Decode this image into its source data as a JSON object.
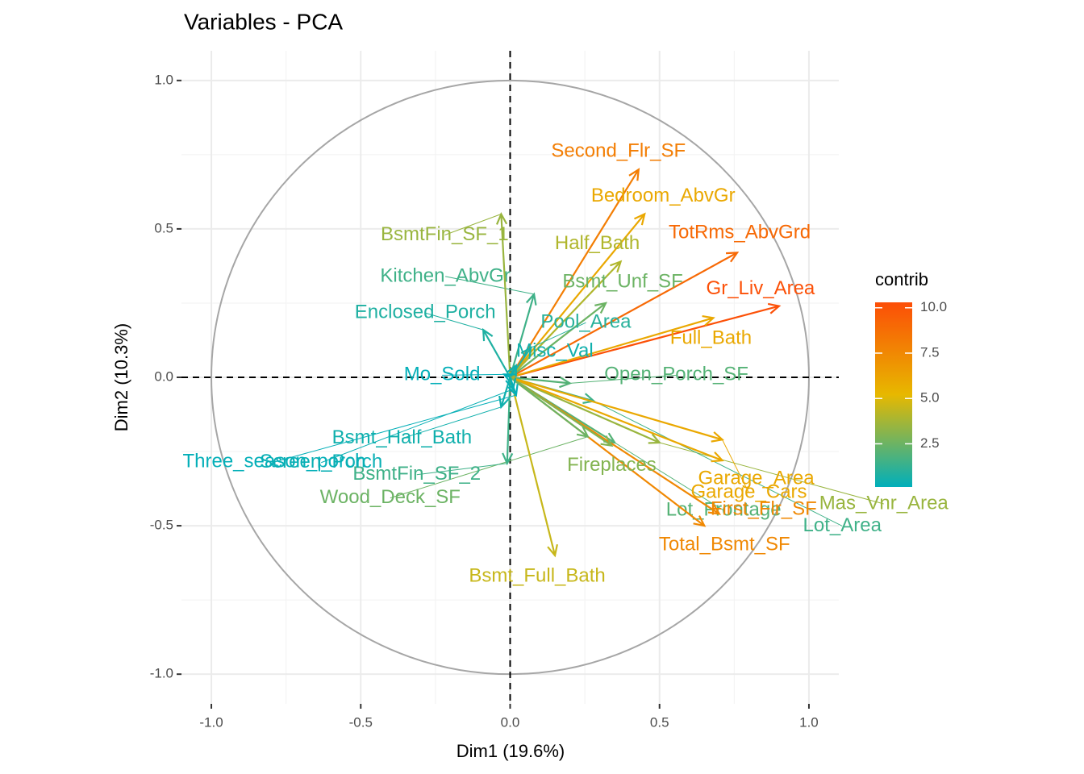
{
  "chart_data": {
    "type": "pca-variables",
    "title": "Variables - PCA",
    "x_label": "Dim1 (19.6%)",
    "y_label": "Dim2 (10.3%)",
    "xlim": [
      -1.1,
      1.1
    ],
    "ylim": [
      -1.1,
      1.1
    ],
    "xticks": [
      {
        "value": -1,
        "label": "-1.0"
      },
      -0.5,
      {
        "value": 0,
        "label": "0.0"
      },
      0.5,
      {
        "value": 1,
        "label": "1.0"
      }
    ],
    "yticks": [
      {
        "value": -1,
        "label": "-1.0"
      },
      -0.5,
      {
        "value": 0,
        "label": "0.0"
      },
      0.5,
      {
        "value": 1,
        "label": "1.0"
      }
    ],
    "grid": true,
    "legend": {
      "title": "contrib",
      "position": "right",
      "limits": [
        0.12,
        10.3
      ],
      "colors": [
        "#00AFBB",
        "#E7B800",
        "#FC4E07"
      ],
      "ticks": [
        2.5,
        {
          "value": 5,
          "label": "5.0"
        },
        7.5,
        {
          "value": 10,
          "label": "10.0"
        }
      ]
    },
    "variables": [
      {
        "name": "Second_Flr_SF",
        "x": 0.43,
        "y": 0.7,
        "contrib": 8.0
      },
      {
        "name": "Bedroom_AbvGr",
        "x": 0.45,
        "y": 0.55,
        "contrib": 6.0
      },
      {
        "name": "TotRms_AbvGrd",
        "x": 0.76,
        "y": 0.42,
        "contrib": 9.0
      },
      {
        "name": "Gr_Liv_Area",
        "x": 0.9,
        "y": 0.24,
        "contrib": 10.2
      },
      {
        "name": "Full_Bath",
        "x": 0.68,
        "y": 0.2,
        "contrib": 6.0
      },
      {
        "name": "Half_Bath",
        "x": 0.37,
        "y": 0.39,
        "contrib": 4.0
      },
      {
        "name": "Bsmt_Unf_SF",
        "x": 0.32,
        "y": 0.25,
        "contrib": 2.5
      },
      {
        "name": "Kitchen_AbvGr",
        "x": 0.08,
        "y": 0.28,
        "contrib": 1.5
      },
      {
        "name": "BsmtFin_SF_1",
        "x": -0.03,
        "y": 0.55,
        "contrib": 3.5
      },
      {
        "name": "Enclosed_Porch",
        "x": -0.09,
        "y": 0.16,
        "contrib": 0.8
      },
      {
        "name": "Pool_Area",
        "x": 0.07,
        "y": 0.1,
        "contrib": 1.0
      },
      {
        "name": "Misc_Val",
        "x": 0.02,
        "y": 0.04,
        "contrib": 0.5
      },
      {
        "name": "Mo_Sold",
        "x": -0.02,
        "y": 0.01,
        "contrib": 0.2
      },
      {
        "name": "Open_Porch_SF",
        "x": 0.2,
        "y": -0.02,
        "contrib": 2.0
      },
      {
        "name": "Mas_Vnr_Area",
        "x": 0.5,
        "y": -0.22,
        "contrib": 3.5
      },
      {
        "name": "Lot_Frontage",
        "x": 0.35,
        "y": -0.22,
        "contrib": 2.0
      },
      {
        "name": "Lot_Area",
        "x": 0.28,
        "y": -0.08,
        "contrib": 1.5
      },
      {
        "name": "Garage_Cars",
        "x": 0.71,
        "y": -0.21,
        "contrib": 6.0
      },
      {
        "name": "Garage_Area",
        "x": 0.71,
        "y": -0.28,
        "contrib": 6.0
      },
      {
        "name": "First_Flr_SF",
        "x": 0.7,
        "y": -0.46,
        "contrib": 7.5
      },
      {
        "name": "Total_Bsmt_SF",
        "x": 0.65,
        "y": -0.5,
        "contrib": 7.5
      },
      {
        "name": "Fireplaces",
        "x": 0.34,
        "y": -0.23,
        "contrib": 3.0
      },
      {
        "name": "Wood_Deck_SF",
        "x": 0.26,
        "y": -0.2,
        "contrib": 2.5
      },
      {
        "name": "Bsmt_Full_Bath",
        "x": 0.15,
        "y": -0.6,
        "contrib": 4.5
      },
      {
        "name": "BsmtFin_SF_2",
        "x": -0.01,
        "y": -0.29,
        "contrib": 1.5
      },
      {
        "name": "Bsmt_Half_Bath",
        "x": -0.03,
        "y": -0.1,
        "contrib": 0.5
      },
      {
        "name": "Three_season_porch",
        "x": 0.02,
        "y": -0.06,
        "contrib": 0.2
      },
      {
        "name": "Screen_Porch",
        "x": 0.01,
        "y": -0.04,
        "contrib": 0.3
      }
    ]
  }
}
